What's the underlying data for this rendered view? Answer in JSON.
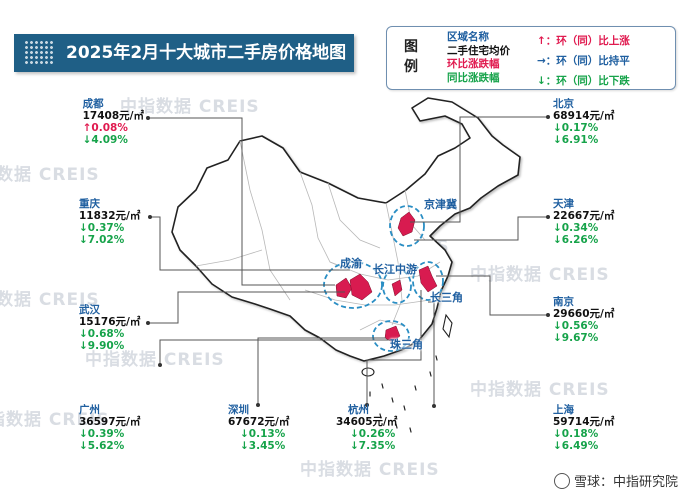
{
  "title": "2025年2月十大城市二手房价格地图",
  "legend": {
    "heading": "图例",
    "field_name": "区域名称",
    "field_price": "二手住宅均价",
    "field_mom": "环比涨跌幅",
    "field_yoy": "同比涨跌幅",
    "key_up": "↑：环（同）比上涨",
    "key_flat": "→：环（同）比持平",
    "key_down": "↓：环（同）比下跌"
  },
  "cities": {
    "chengdu": {
      "name": "成都",
      "price": "17408元/㎡",
      "mom": "↑0.08%",
      "yoy": "↓4.09%"
    },
    "chongqing": {
      "name": "重庆",
      "price": "11832元/㎡",
      "mom": "↓0.37%",
      "yoy": "↓7.02%"
    },
    "wuhan": {
      "name": "武汉",
      "price": "15176元/㎡",
      "mom": "↓0.68%",
      "yoy": "↓9.90%"
    },
    "guangzhou": {
      "name": "广州",
      "price": "36597元/㎡",
      "mom": "↓0.39%",
      "yoy": "↓5.62%"
    },
    "shenzhen": {
      "name": "深圳",
      "price": "67672元/㎡",
      "mom": "↓0.13%",
      "yoy": "↓3.45%"
    },
    "hangzhou": {
      "name": "杭州",
      "price": "34605元/㎡",
      "mom": "↓0.26%",
      "yoy": "↓7.35%"
    },
    "shanghai": {
      "name": "上海",
      "price": "59714元/㎡",
      "mom": "↓0.18%",
      "yoy": "↓6.49%"
    },
    "nanjing": {
      "name": "南京",
      "price": "29660元/㎡",
      "mom": "↓0.56%",
      "yoy": "↓9.67%"
    },
    "tianjin": {
      "name": "天津",
      "price": "22667元/㎡",
      "mom": "↓0.34%",
      "yoy": "↓6.26%"
    },
    "beijing": {
      "name": "北京",
      "price": "68914元/㎡",
      "mom": "↓0.17%",
      "yoy": "↓6.91%"
    }
  },
  "regions": {
    "jingjinji": "京津冀",
    "chengyu": "成渝",
    "changjiang": "长江中游",
    "changsanjiao": "长三角",
    "zhusanjiao": "珠三角"
  },
  "watermark": "中指数据 CREIS",
  "corner_note": "雪球：中指研究院",
  "colors": {
    "banner": "#1f5f86",
    "accent_blue": "#1f5fa0",
    "up_red": "#e01a4f",
    "down_green": "#16a34a",
    "region_fill": "#d81b50"
  }
}
